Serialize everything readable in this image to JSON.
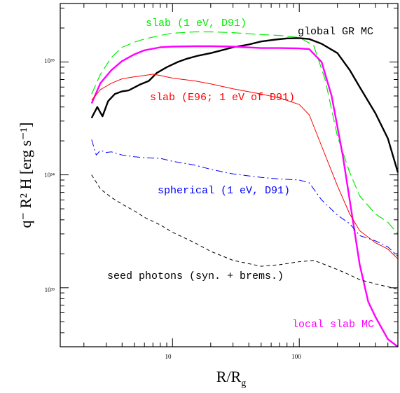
{
  "chart_data": {
    "type": "line",
    "xlabel": "R/R",
    "xlabel_sub": "g",
    "ylabel": "q⁻ R² H [erg s⁻¹]",
    "xscale": "log",
    "yscale": "log",
    "xlim": [
      1.3,
      600
    ],
    "ylim": [
      3e+32,
      3.3e+35
    ],
    "x_ticks": [
      10,
      100
    ],
    "x_tick_labels": [
      "10",
      "100"
    ],
    "y_ticks": [
      1e+33,
      1e+34,
      1e+35
    ],
    "y_tick_labels": [
      "10³³",
      "10³⁴",
      "10³⁵"
    ],
    "grid": false,
    "series": [
      {
        "name": "slab (1 eV, D91)",
        "color": "#00ee00",
        "dash": "dashed",
        "width": 1.2,
        "x": [
          2.3,
          2.7,
          3.3,
          4,
          5,
          6,
          8,
          10,
          15,
          20,
          30,
          50,
          70,
          100,
          130,
          160,
          200,
          250,
          300,
          400,
          500,
          600
        ],
        "y": [
          5.2e+34,
          7.8e+34,
          1.1e+35,
          1.35e+35,
          1.5e+35,
          1.6e+35,
          1.72e+35,
          1.8e+35,
          1.85e+35,
          1.85e+35,
          1.82e+35,
          1.75e+35,
          1.72e+35,
          1.65e+35,
          1.4e+35,
          7e+34,
          2.2e+34,
          1.05e+34,
          6.5e+33,
          4.5e+33,
          3.8e+33,
          3e+33
        ]
      },
      {
        "name": "global GR MC",
        "color": "#000000",
        "dash": "solid",
        "width": 2.4,
        "x": [
          2.3,
          2.55,
          2.8,
          3.1,
          3.5,
          4,
          4.5,
          5.5,
          6.5,
          7.5,
          9,
          11,
          13,
          16,
          20,
          25,
          30,
          40,
          50,
          65,
          80,
          100,
          120,
          150,
          200,
          250,
          300,
          400,
          500,
          600
        ],
        "y": [
          3.2e+34,
          4e+34,
          3.3e+34,
          4.5e+34,
          5.2e+34,
          5.5e+34,
          5.6e+34,
          6.3e+34,
          6.8e+34,
          8e+34,
          9e+34,
          1e+35,
          1.07e+35,
          1.14e+35,
          1.2e+35,
          1.28e+35,
          1.35e+35,
          1.43e+35,
          1.52e+35,
          1.58e+35,
          1.62e+35,
          1.63e+35,
          1.6e+35,
          1.45e+35,
          1.2e+35,
          8.5e+34,
          6e+34,
          3.5e+34,
          2.1e+34,
          1.05e+34
        ]
      },
      {
        "name": "local slab MC",
        "color": "#ff00ff",
        "dash": "solid",
        "width": 2.4,
        "x": [
          2.3,
          2.7,
          3.3,
          4,
          5,
          6,
          8,
          10,
          15,
          20,
          30,
          50,
          70,
          100,
          120,
          150,
          180,
          220,
          260,
          300,
          350,
          400,
          500,
          600
        ],
        "y": [
          4.3e+34,
          6.5e+34,
          8.5e+34,
          1.02e+35,
          1.17e+35,
          1.27e+35,
          1.35e+35,
          1.37e+35,
          1.38e+35,
          1.38e+35,
          1.37e+35,
          1.33e+35,
          1.33e+35,
          1.32e+35,
          1.3e+35,
          1e+35,
          5e+34,
          1.5e+34,
          4.5e+33,
          1.6e+33,
          7.5e+32,
          5.5e+32,
          3.5e+32,
          2.8e+32
        ]
      },
      {
        "name": "slab (E96; 1 eV of D91)",
        "color": "#ff0000",
        "dash": "solid",
        "width": 1,
        "x": [
          2.3,
          2.7,
          3.3,
          4,
          5,
          6,
          7,
          8,
          10,
          15,
          20,
          30,
          50,
          70,
          100,
          120,
          150,
          200,
          250,
          300,
          400,
          500,
          600
        ],
        "y": [
          4.6e+34,
          5.7e+34,
          6.5e+34,
          7.1e+34,
          7.4e+34,
          7.6e+34,
          7.8e+34,
          7.6e+34,
          7.2e+34,
          6.8e+34,
          6.4e+34,
          5.8e+34,
          5.2e+34,
          4.8e+34,
          4.2e+34,
          3.4e+34,
          1.8e+34,
          8e+33,
          4.5e+33,
          3.2e+33,
          2.5e+33,
          2.2e+33,
          1.8e+33
        ]
      },
      {
        "name": "spherical (1 eV, D91)",
        "color": "#0000ff",
        "dash": "dashdot",
        "width": 1,
        "x": [
          2.3,
          2.5,
          2.7,
          3,
          3.3,
          4,
          5,
          6,
          8,
          10,
          15,
          20,
          30,
          50,
          70,
          100,
          120,
          150,
          200,
          250,
          300,
          400,
          500,
          600
        ],
        "y": [
          2.05e+34,
          1.5e+34,
          1.65e+34,
          1.58e+34,
          1.6e+34,
          1.5e+34,
          1.45e+34,
          1.42e+34,
          1.4e+34,
          1.32e+34,
          1.22e+34,
          1.12e+34,
          1.02e+34,
          9.5e+33,
          9.2e+33,
          9e+33,
          8.5e+33,
          6e+33,
          4.4e+33,
          3.7e+33,
          2.9e+33,
          2.6e+33,
          2.3e+33,
          1.9e+33
        ]
      },
      {
        "name": "seed photons (syn. + brems.)",
        "color": "#000000",
        "dash": "dashed_short",
        "width": 1,
        "x": [
          2.3,
          2.7,
          3.3,
          4,
          5,
          6,
          8,
          10,
          15,
          20,
          30,
          50,
          70,
          100,
          130,
          160,
          200,
          250,
          300,
          400,
          500,
          600
        ],
        "y": [
          1e+34,
          7.5e+33,
          6.3e+33,
          5.5e+33,
          4.8e+33,
          4.2e+33,
          3.6e+33,
          3.1e+33,
          2.5e+33,
          2.1e+33,
          1.75e+33,
          1.55e+33,
          1.6e+33,
          1.7e+33,
          1.75e+33,
          1.6e+33,
          1.45e+33,
          1.3e+33,
          1.18e+33,
          1.08e+33,
          1.02e+33,
          9.7e+32
        ]
      }
    ],
    "annotations": [
      {
        "text": "slab (1 eV, D91)",
        "color": "#00ee00"
      },
      {
        "text": "global GR MC",
        "color": "#000000"
      },
      {
        "text": "slab (E96; 1 eV of D91)",
        "color": "#ff0000"
      },
      {
        "text": "spherical (1 eV, D91)",
        "color": "#0000ff"
      },
      {
        "text": "seed photons (syn. + brems.)",
        "color": "#000000"
      },
      {
        "text": "local slab MC",
        "color": "#ff00ff"
      }
    ]
  }
}
